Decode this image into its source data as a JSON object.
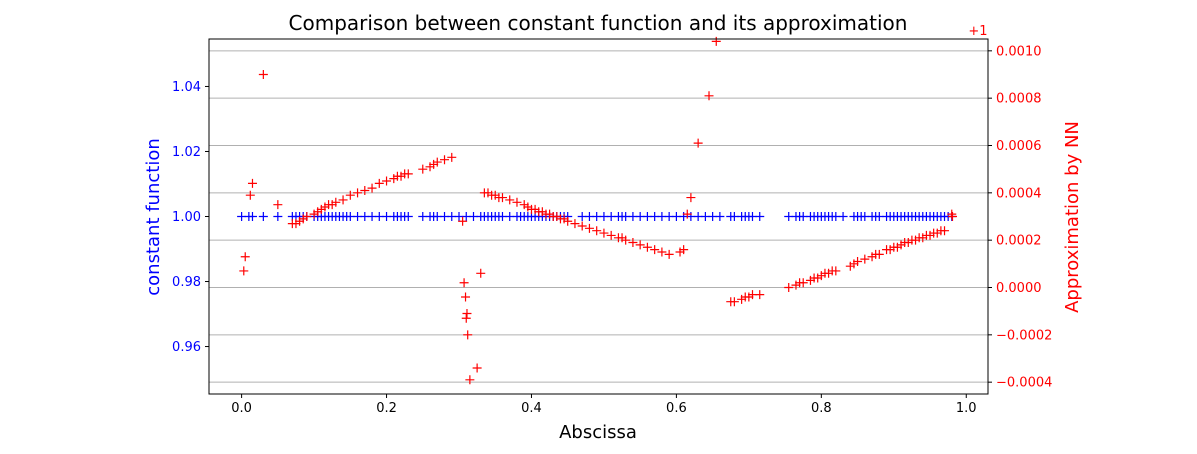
{
  "chart_data": {
    "type": "scatter",
    "title": "Comparison between constant function and its approximation",
    "xlabel": "Abscissa",
    "ylabel_left": "constant function",
    "ylabel_right": "Approximation by NN",
    "right_offset_label": "+1",
    "xlim": [
      -0.045,
      1.03
    ],
    "ylim_left": [
      0.9454,
      1.0546
    ],
    "ylim_right": [
      -0.00045,
      0.00105
    ],
    "x_ticks": [
      0.0,
      0.2,
      0.4,
      0.6,
      0.8,
      1.0
    ],
    "x_tick_labels": [
      "0.0",
      "0.2",
      "0.4",
      "0.6",
      "0.8",
      "1.0"
    ],
    "y_ticks_left": [
      0.96,
      0.98,
      1.0,
      1.02,
      1.04
    ],
    "y_tick_labels_left": [
      "0.96",
      "0.98",
      "1.00",
      "1.02",
      "1.04"
    ],
    "y_ticks_right": [
      -0.0004,
      -0.0002,
      0.0,
      0.0002,
      0.0004,
      0.0006,
      0.0008,
      0.001
    ],
    "y_tick_labels_right": [
      "−0.0004",
      "−0.0002",
      "0.0000",
      "0.0002",
      "0.0004",
      "0.0006",
      "0.0008",
      "0.0010"
    ],
    "grid": "horizontal lines at right-axis ticks",
    "colors": {
      "left": "#0000ff",
      "right": "#ff0000",
      "grid": "#b0b0b0",
      "axes": "#000000"
    },
    "series": [
      {
        "axis": "left",
        "marker": "+",
        "color": "#0000ff",
        "x": [
          0.0,
          0.01,
          0.015,
          0.03,
          0.05,
          0.07,
          0.075,
          0.08,
          0.085,
          0.09,
          0.1,
          0.105,
          0.11,
          0.115,
          0.12,
          0.125,
          0.13,
          0.135,
          0.14,
          0.145,
          0.15,
          0.16,
          0.17,
          0.18,
          0.19,
          0.2,
          0.21,
          0.215,
          0.22,
          0.225,
          0.23,
          0.25,
          0.26,
          0.265,
          0.27,
          0.28,
          0.29,
          0.3,
          0.31,
          0.32,
          0.33,
          0.335,
          0.34,
          0.345,
          0.35,
          0.355,
          0.36,
          0.37,
          0.38,
          0.385,
          0.39,
          0.395,
          0.4,
          0.405,
          0.41,
          0.415,
          0.42,
          0.425,
          0.43,
          0.435,
          0.44,
          0.445,
          0.45,
          0.47,
          0.48,
          0.49,
          0.5,
          0.51,
          0.52,
          0.525,
          0.53,
          0.54,
          0.55,
          0.56,
          0.57,
          0.58,
          0.59,
          0.6,
          0.61,
          0.62,
          0.63,
          0.64,
          0.65,
          0.66,
          0.675,
          0.68,
          0.69,
          0.695,
          0.7,
          0.705,
          0.715,
          0.755,
          0.765,
          0.77,
          0.775,
          0.785,
          0.79,
          0.795,
          0.8,
          0.805,
          0.81,
          0.815,
          0.82,
          0.83,
          0.845,
          0.85,
          0.855,
          0.86,
          0.87,
          0.875,
          0.88,
          0.89,
          0.895,
          0.9,
          0.905,
          0.91,
          0.915,
          0.92,
          0.925,
          0.93,
          0.935,
          0.94,
          0.945,
          0.95,
          0.955,
          0.96,
          0.965,
          0.97,
          0.975,
          0.98
        ],
        "values": "all 1.0"
      },
      {
        "axis": "right",
        "marker": "+",
        "color": "#ff0000",
        "points": [
          [
            0.003,
            7e-05
          ],
          [
            0.005,
            0.00013
          ],
          [
            0.012,
            0.00039
          ],
          [
            0.015,
            0.00044
          ],
          [
            0.03,
            0.0009
          ],
          [
            0.05,
            0.00035
          ],
          [
            0.07,
            0.00027
          ],
          [
            0.075,
            0.00027
          ],
          [
            0.08,
            0.00028
          ],
          [
            0.085,
            0.00029
          ],
          [
            0.09,
            0.0003
          ],
          [
            0.1,
            0.00031
          ],
          [
            0.105,
            0.00032
          ],
          [
            0.11,
            0.00033
          ],
          [
            0.115,
            0.00034
          ],
          [
            0.12,
            0.00035
          ],
          [
            0.125,
            0.00035
          ],
          [
            0.13,
            0.00036
          ],
          [
            0.14,
            0.00037
          ],
          [
            0.15,
            0.00039
          ],
          [
            0.16,
            0.0004
          ],
          [
            0.17,
            0.00041
          ],
          [
            0.18,
            0.00042
          ],
          [
            0.19,
            0.00044
          ],
          [
            0.2,
            0.00045
          ],
          [
            0.21,
            0.00046
          ],
          [
            0.215,
            0.00047
          ],
          [
            0.22,
            0.00047
          ],
          [
            0.225,
            0.00048
          ],
          [
            0.23,
            0.00048
          ],
          [
            0.25,
            0.0005
          ],
          [
            0.26,
            0.00051
          ],
          [
            0.265,
            0.00052
          ],
          [
            0.27,
            0.00053
          ],
          [
            0.28,
            0.00054
          ],
          [
            0.29,
            0.00055
          ],
          [
            0.305,
            0.00028
          ],
          [
            0.307,
            2e-05
          ],
          [
            0.309,
            -4e-05
          ],
          [
            0.31,
            -0.00013
          ],
          [
            0.311,
            -0.00011
          ],
          [
            0.312,
            -0.0002
          ],
          [
            0.315,
            -0.00039
          ],
          [
            0.325,
            -0.00034
          ],
          [
            0.33,
            6e-05
          ],
          [
            0.335,
            0.0004
          ],
          [
            0.34,
            0.0004
          ],
          [
            0.345,
            0.00039
          ],
          [
            0.35,
            0.00039
          ],
          [
            0.355,
            0.00038
          ],
          [
            0.36,
            0.00038
          ],
          [
            0.37,
            0.00037
          ],
          [
            0.38,
            0.00036
          ],
          [
            0.39,
            0.00035
          ],
          [
            0.395,
            0.00034
          ],
          [
            0.4,
            0.00033
          ],
          [
            0.405,
            0.00033
          ],
          [
            0.41,
            0.00032
          ],
          [
            0.415,
            0.00032
          ],
          [
            0.42,
            0.00031
          ],
          [
            0.425,
            0.00031
          ],
          [
            0.43,
            0.0003
          ],
          [
            0.435,
            0.0003
          ],
          [
            0.44,
            0.00029
          ],
          [
            0.445,
            0.00029
          ],
          [
            0.45,
            0.00028
          ],
          [
            0.46,
            0.00027
          ],
          [
            0.47,
            0.00026
          ],
          [
            0.48,
            0.00025
          ],
          [
            0.49,
            0.00024
          ],
          [
            0.5,
            0.00023
          ],
          [
            0.51,
            0.00022
          ],
          [
            0.52,
            0.00021
          ],
          [
            0.525,
            0.00021
          ],
          [
            0.53,
            0.0002
          ],
          [
            0.54,
            0.00019
          ],
          [
            0.55,
            0.00018
          ],
          [
            0.56,
            0.00017
          ],
          [
            0.57,
            0.00016
          ],
          [
            0.58,
            0.00015
          ],
          [
            0.59,
            0.00014
          ],
          [
            0.605,
            0.00015
          ],
          [
            0.61,
            0.00016
          ],
          [
            0.615,
            0.00031
          ],
          [
            0.62,
            0.00038
          ],
          [
            0.63,
            0.00061
          ],
          [
            0.645,
            0.00081
          ],
          [
            0.655,
            0.00104
          ],
          [
            0.675,
            -6e-05
          ],
          [
            0.68,
            -6e-05
          ],
          [
            0.69,
            -5e-05
          ],
          [
            0.695,
            -4e-05
          ],
          [
            0.7,
            -4e-05
          ],
          [
            0.705,
            -3e-05
          ],
          [
            0.715,
            -3e-05
          ],
          [
            0.755,
            0.0
          ],
          [
            0.765,
            1e-05
          ],
          [
            0.77,
            2e-05
          ],
          [
            0.775,
            2e-05
          ],
          [
            0.785,
            3e-05
          ],
          [
            0.79,
            4e-05
          ],
          [
            0.795,
            4e-05
          ],
          [
            0.8,
            5e-05
          ],
          [
            0.805,
            6e-05
          ],
          [
            0.81,
            6e-05
          ],
          [
            0.815,
            7e-05
          ],
          [
            0.82,
            7e-05
          ],
          [
            0.84,
            9e-05
          ],
          [
            0.845,
            0.0001
          ],
          [
            0.85,
            0.00011
          ],
          [
            0.86,
            0.00012
          ],
          [
            0.87,
            0.00013
          ],
          [
            0.875,
            0.00014
          ],
          [
            0.88,
            0.00014
          ],
          [
            0.89,
            0.00016
          ],
          [
            0.895,
            0.00016
          ],
          [
            0.9,
            0.00017
          ],
          [
            0.905,
            0.00017
          ],
          [
            0.91,
            0.00018
          ],
          [
            0.915,
            0.00019
          ],
          [
            0.92,
            0.00019
          ],
          [
            0.925,
            0.0002
          ],
          [
            0.93,
            0.0002
          ],
          [
            0.935,
            0.00021
          ],
          [
            0.94,
            0.00021
          ],
          [
            0.945,
            0.00022
          ],
          [
            0.95,
            0.00022
          ],
          [
            0.955,
            0.00023
          ],
          [
            0.96,
            0.00023
          ],
          [
            0.965,
            0.00024
          ],
          [
            0.97,
            0.00024
          ],
          [
            0.98,
            0.00031
          ],
          [
            0.981,
            0.0003
          ]
        ]
      }
    ]
  }
}
